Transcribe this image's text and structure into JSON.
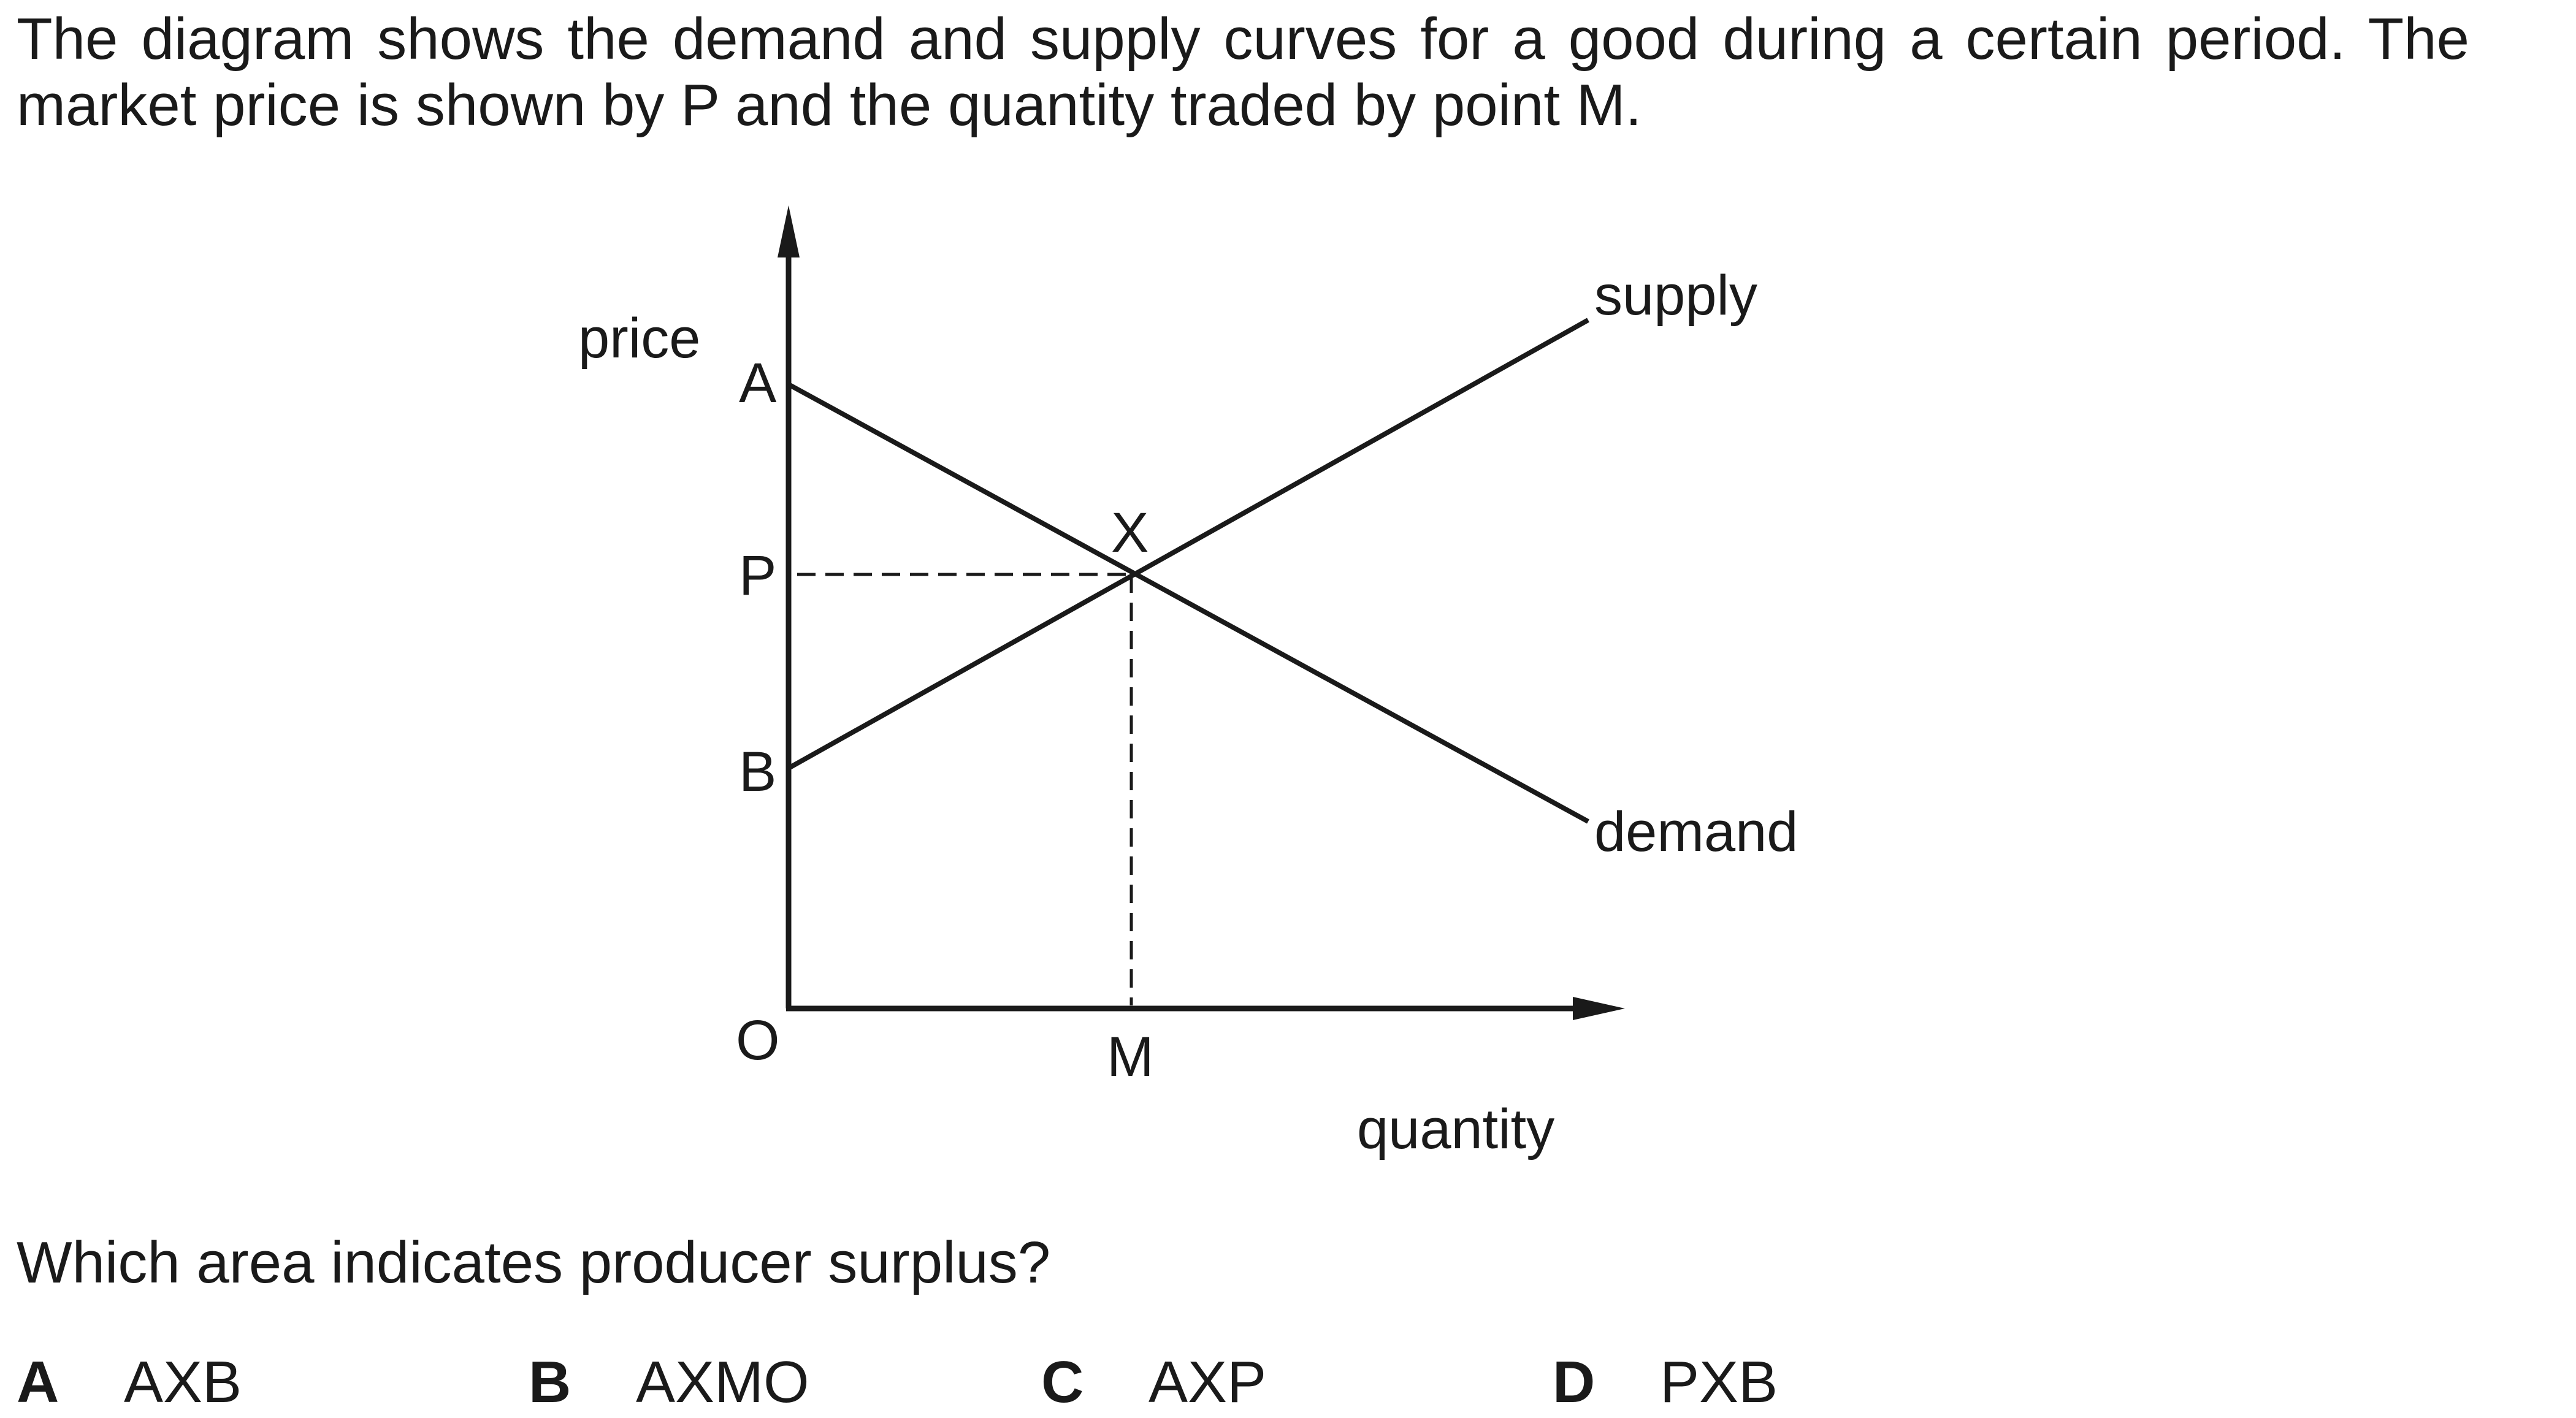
{
  "intro": "The diagram shows the demand and supply curves for a good during a certain period. The market price is shown by P and the quantity traded by point M.",
  "diagram": {
    "y_axis_label": "price",
    "x_axis_label": "quantity",
    "origin_label": "O",
    "points": {
      "A": "A",
      "P": "P",
      "B": "B",
      "X": "X",
      "M": "M"
    },
    "curves": {
      "supply": "supply",
      "demand": "demand"
    },
    "line_color": "#1a1a1a"
  },
  "question": "Which area indicates producer surplus?",
  "options": [
    {
      "letter": "A",
      "text": "AXB"
    },
    {
      "letter": "B",
      "text": "AXMO"
    },
    {
      "letter": "C",
      "text": "AXP"
    },
    {
      "letter": "D",
      "text": "PXB"
    }
  ]
}
